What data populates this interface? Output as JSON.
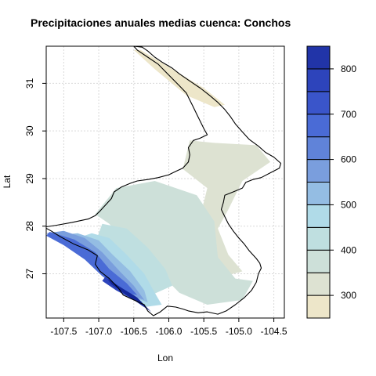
{
  "chart_data": {
    "type": "heatmap",
    "title": "Precipitaciones anuales medias cuenca: Conchos",
    "xlabel": "Lon",
    "ylabel": "Lat",
    "xlim": [
      -107.75,
      -104.35
    ],
    "ylim": [
      26.07,
      31.78
    ],
    "x_ticks": [
      "-107.5",
      "-107.0",
      "-106.5",
      "-106.0",
      "-105.5",
      "-105.0",
      "-104.5"
    ],
    "x_tick_values": [
      -107.5,
      -107.0,
      -106.5,
      -106.0,
      -105.5,
      -105.0,
      -104.5
    ],
    "y_ticks": [
      "27",
      "28",
      "29",
      "30",
      "31"
    ],
    "y_tick_values": [
      27,
      28,
      29,
      30,
      31
    ],
    "grid": true,
    "colorbar": {
      "levels": [
        250,
        300,
        350,
        400,
        450,
        500,
        550,
        600,
        650,
        700,
        750,
        800,
        850
      ],
      "colors": [
        "#ede6c9",
        "#dde2d2",
        "#cde0d9",
        "#bfdfe0",
        "#b0dbe8",
        "#94bde3",
        "#7a9edd",
        "#6083d9",
        "#4a6bd6",
        "#3a55ca",
        "#2d44bb",
        "#2134a8",
        "#142799"
      ],
      "tick_labels": [
        "300",
        "400",
        "500",
        "600",
        "700",
        "800"
      ],
      "tick_values": [
        300,
        400,
        500,
        600,
        700,
        800
      ]
    },
    "basin_outline": [
      [
        -107.38,
        28.08
      ],
      [
        -107.6,
        28.02
      ],
      [
        -107.78,
        27.98
      ],
      [
        -107.68,
        27.9
      ],
      [
        -107.55,
        27.78
      ],
      [
        -107.35,
        27.62
      ],
      [
        -107.15,
        27.5
      ],
      [
        -107.02,
        27.38
      ],
      [
        -107.05,
        27.2
      ],
      [
        -106.98,
        27.05
      ],
      [
        -106.85,
        26.9
      ],
      [
        -106.72,
        26.7
      ],
      [
        -106.65,
        26.55
      ],
      [
        -106.5,
        26.45
      ],
      [
        -106.35,
        26.35
      ],
      [
        -106.3,
        26.22
      ],
      [
        -106.22,
        26.12
      ],
      [
        -106.12,
        26.2
      ],
      [
        -106.02,
        26.32
      ],
      [
        -105.9,
        26.3
      ],
      [
        -105.8,
        26.26
      ],
      [
        -105.72,
        26.22
      ],
      [
        -105.58,
        26.18
      ],
      [
        -105.45,
        26.2
      ],
      [
        -105.3,
        26.15
      ],
      [
        -105.18,
        26.22
      ],
      [
        -105.05,
        26.35
      ],
      [
        -104.92,
        26.5
      ],
      [
        -104.82,
        26.65
      ],
      [
        -104.75,
        26.82
      ],
      [
        -104.72,
        27.0
      ],
      [
        -104.68,
        27.12
      ],
      [
        -104.7,
        27.22
      ],
      [
        -104.75,
        27.32
      ],
      [
        -104.85,
        27.48
      ],
      [
        -104.92,
        27.62
      ],
      [
        -105.0,
        27.75
      ],
      [
        -105.08,
        27.9
      ],
      [
        -105.15,
        28.05
      ],
      [
        -105.2,
        28.2
      ],
      [
        -105.25,
        28.35
      ],
      [
        -105.22,
        28.5
      ],
      [
        -105.2,
        28.65
      ],
      [
        -105.08,
        28.72
      ],
      [
        -104.95,
        28.8
      ],
      [
        -104.9,
        28.92
      ],
      [
        -104.8,
        28.98
      ],
      [
        -104.68,
        29.02
      ],
      [
        -104.55,
        29.12
      ],
      [
        -104.42,
        29.22
      ],
      [
        -104.4,
        29.32
      ],
      [
        -104.5,
        29.45
      ],
      [
        -104.62,
        29.55
      ],
      [
        -104.72,
        29.68
      ],
      [
        -104.85,
        29.82
      ],
      [
        -104.95,
        29.98
      ],
      [
        -105.05,
        30.15
      ],
      [
        -105.12,
        30.3
      ],
      [
        -105.2,
        30.45
      ],
      [
        -105.3,
        30.6
      ],
      [
        -105.42,
        30.75
      ],
      [
        -105.55,
        30.9
      ],
      [
        -105.7,
        31.05
      ],
      [
        -105.85,
        31.2
      ],
      [
        -105.95,
        31.32
      ],
      [
        -106.1,
        31.45
      ],
      [
        -106.2,
        31.55
      ],
      [
        -106.3,
        31.68
      ],
      [
        -106.38,
        31.76
      ],
      [
        -106.5,
        31.78
      ],
      [
        -106.45,
        31.7
      ],
      [
        -106.3,
        31.55
      ],
      [
        -106.15,
        31.4
      ],
      [
        -106.05,
        31.25
      ],
      [
        -105.95,
        31.1
      ],
      [
        -105.85,
        30.95
      ],
      [
        -105.75,
        30.8
      ],
      [
        -105.7,
        30.65
      ],
      [
        -105.65,
        30.5
      ],
      [
        -105.6,
        30.35
      ],
      [
        -105.55,
        30.2
      ],
      [
        -105.5,
        30.05
      ],
      [
        -105.45,
        29.92
      ],
      [
        -105.55,
        29.85
      ],
      [
        -105.65,
        29.8
      ],
      [
        -105.72,
        29.65
      ],
      [
        -105.7,
        29.5
      ],
      [
        -105.72,
        29.35
      ],
      [
        -105.8,
        29.22
      ],
      [
        -105.9,
        29.15
      ],
      [
        -106.0,
        29.08
      ],
      [
        -106.15,
        29.02
      ],
      [
        -106.3,
        28.98
      ],
      [
        -106.45,
        28.95
      ],
      [
        -106.55,
        28.9
      ],
      [
        -106.68,
        28.82
      ],
      [
        -106.78,
        28.72
      ],
      [
        -106.82,
        28.58
      ],
      [
        -106.9,
        28.45
      ],
      [
        -106.98,
        28.32
      ],
      [
        -107.05,
        28.22
      ],
      [
        -107.15,
        28.15
      ],
      [
        -107.25,
        28.12
      ],
      [
        -107.38,
        28.08
      ]
    ],
    "zones": [
      {
        "level_index": 0,
        "points": [
          [
            -106.4,
            31.7
          ],
          [
            -105.5,
            30.9
          ],
          [
            -105.2,
            30.55
          ],
          [
            -105.35,
            30.5
          ],
          [
            -105.75,
            30.75
          ],
          [
            -106.2,
            31.3
          ],
          [
            -106.5,
            31.7
          ]
        ]
      },
      {
        "level_index": 1,
        "points": [
          [
            -105.7,
            29.8
          ],
          [
            -105.35,
            29.75
          ],
          [
            -104.75,
            29.7
          ],
          [
            -104.55,
            29.35
          ],
          [
            -104.95,
            28.95
          ],
          [
            -105.15,
            28.35
          ],
          [
            -105.3,
            27.95
          ],
          [
            -105.15,
            27.4
          ],
          [
            -104.95,
            27.05
          ],
          [
            -105.2,
            26.95
          ],
          [
            -105.4,
            27.45
          ],
          [
            -105.55,
            28.2
          ],
          [
            -105.45,
            28.8
          ],
          [
            -105.8,
            29.2
          ]
        ]
      },
      {
        "level_index": 2,
        "points": [
          [
            -106.75,
            28.8
          ],
          [
            -106.2,
            28.95
          ],
          [
            -105.6,
            28.65
          ],
          [
            -105.35,
            28.1
          ],
          [
            -105.3,
            27.35
          ],
          [
            -105.05,
            26.9
          ],
          [
            -104.8,
            26.85
          ],
          [
            -104.95,
            26.45
          ],
          [
            -105.45,
            26.35
          ],
          [
            -105.85,
            26.6
          ],
          [
            -106.15,
            27.05
          ],
          [
            -106.55,
            27.55
          ],
          [
            -106.85,
            28.05
          ],
          [
            -107.05,
            28.25
          ]
        ]
      },
      {
        "level_index": 3,
        "points": [
          [
            -106.95,
            28.05
          ],
          [
            -106.6,
            27.95
          ],
          [
            -106.3,
            27.55
          ],
          [
            -106.05,
            27.1
          ],
          [
            -105.95,
            26.75
          ],
          [
            -106.25,
            26.55
          ],
          [
            -106.5,
            26.95
          ],
          [
            -106.8,
            27.35
          ],
          [
            -107.05,
            27.65
          ]
        ]
      },
      {
        "level_index": 4,
        "points": [
          [
            -107.1,
            27.85
          ],
          [
            -106.85,
            27.75
          ],
          [
            -106.6,
            27.4
          ],
          [
            -106.35,
            27.0
          ],
          [
            -106.2,
            26.6
          ],
          [
            -106.1,
            26.35
          ],
          [
            -106.35,
            26.3
          ],
          [
            -106.6,
            26.7
          ],
          [
            -106.85,
            27.05
          ],
          [
            -107.1,
            27.45
          ],
          [
            -107.4,
            27.7
          ]
        ]
      },
      {
        "level_index": 5,
        "points": [
          [
            -107.3,
            27.85
          ],
          [
            -107.0,
            27.7
          ],
          [
            -106.8,
            27.4
          ],
          [
            -106.55,
            27.05
          ],
          [
            -106.35,
            26.65
          ],
          [
            -106.3,
            26.4
          ],
          [
            -106.5,
            26.5
          ],
          [
            -106.75,
            26.85
          ],
          [
            -107.0,
            27.2
          ],
          [
            -107.4,
            27.6
          ],
          [
            -107.65,
            27.8
          ]
        ]
      },
      {
        "level_index": 6,
        "points": [
          [
            -107.5,
            27.9
          ],
          [
            -107.2,
            27.75
          ],
          [
            -106.95,
            27.45
          ],
          [
            -106.7,
            27.05
          ],
          [
            -106.5,
            26.75
          ],
          [
            -106.35,
            26.45
          ],
          [
            -106.55,
            26.55
          ],
          [
            -106.85,
            26.95
          ],
          [
            -107.1,
            27.3
          ],
          [
            -107.5,
            27.65
          ],
          [
            -107.75,
            27.85
          ]
        ]
      },
      {
        "level_index": 8,
        "points": [
          [
            -107.7,
            27.88
          ],
          [
            -107.35,
            27.72
          ],
          [
            -107.05,
            27.45
          ],
          [
            -106.85,
            27.1
          ],
          [
            -106.6,
            26.8
          ],
          [
            -106.45,
            26.55
          ],
          [
            -106.65,
            26.62
          ],
          [
            -106.95,
            26.95
          ],
          [
            -107.2,
            27.3
          ],
          [
            -107.5,
            27.6
          ],
          [
            -107.75,
            27.8
          ]
        ]
      },
      {
        "level_index": 10,
        "points": [
          [
            -106.9,
            26.95
          ],
          [
            -106.7,
            26.72
          ],
          [
            -106.5,
            26.55
          ],
          [
            -106.38,
            26.4
          ],
          [
            -106.5,
            26.45
          ],
          [
            -106.75,
            26.65
          ],
          [
            -106.95,
            26.85
          ]
        ]
      },
      {
        "level_index": 12,
        "points": [
          [
            -106.88,
            26.9
          ],
          [
            -106.65,
            26.68
          ],
          [
            -106.45,
            26.5
          ],
          [
            -106.32,
            26.3
          ],
          [
            -106.25,
            26.2
          ],
          [
            -106.4,
            26.35
          ],
          [
            -106.6,
            26.55
          ],
          [
            -106.82,
            26.78
          ]
        ]
      }
    ]
  }
}
